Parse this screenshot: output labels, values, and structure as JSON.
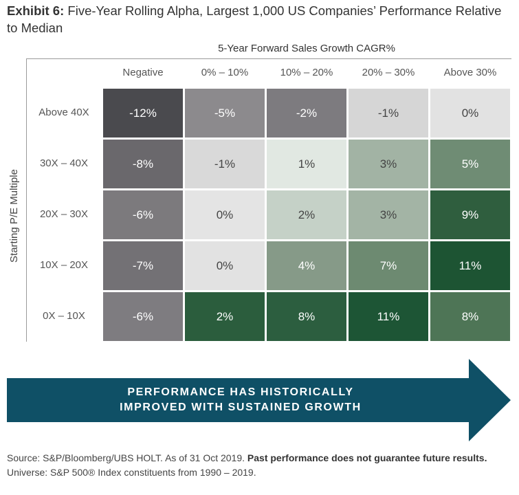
{
  "header": {
    "exhibit": "Exhibit 6:",
    "title": "Five-Year Rolling Alpha, Largest 1,000 US Companies’ Performance Relative to Median"
  },
  "chart_data": {
    "type": "heatmap",
    "xlabel": "5-Year Forward Sales Growth CAGR%",
    "ylabel": "Starting P/E Multiple",
    "columns": [
      "Negative",
      "0% – 10%",
      "10% – 20%",
      "20% – 30%",
      "Above 30%"
    ],
    "rows": [
      "Above 40X",
      "30X – 40X",
      "20X – 30X",
      "10X – 20X",
      "0X – 10X"
    ],
    "values": [
      [
        -12,
        -5,
        -2,
        -1,
        0
      ],
      [
        -8,
        -1,
        1,
        3,
        5
      ],
      [
        -6,
        0,
        2,
        3,
        9
      ],
      [
        -7,
        0,
        4,
        7,
        11
      ],
      [
        -6,
        2,
        8,
        11,
        8
      ]
    ],
    "labels": [
      [
        "-12%",
        "-5%",
        "-2%",
        "-1%",
        "0%"
      ],
      [
        "-8%",
        "-1%",
        "1%",
        "3%",
        "5%"
      ],
      [
        "-6%",
        "0%",
        "2%",
        "3%",
        "9%"
      ],
      [
        "-7%",
        "0%",
        "4%",
        "7%",
        "11%"
      ],
      [
        "-6%",
        "2%",
        "8%",
        "11%",
        "8%"
      ]
    ],
    "colors": [
      [
        "#4a4a4e",
        "#8c8a8d",
        "#7d7b7f",
        "#d6d6d6",
        "#e2e2e2"
      ],
      [
        "#6a686c",
        "#d9d9d9",
        "#e1e8e2",
        "#a2b3a4",
        "#6f8c74"
      ],
      [
        "#7c7a7d",
        "#e4e4e4",
        "#c5d1c7",
        "#a3b4a5",
        "#2f5e3e"
      ],
      [
        "#737175",
        "#e2e2e2",
        "#869a88",
        "#6d8a71",
        "#1d5433"
      ],
      [
        "#7e7c80",
        "#2b5d3d",
        "#2c5e3f",
        "#1d5535",
        "#4e7556"
      ]
    ]
  },
  "banner": {
    "line1": "PERFORMANCE HAS HISTORICALLY",
    "line2": "IMPROVED WITH SUSTAINED GROWTH",
    "color": "#0f5066"
  },
  "source": {
    "part1": "Source: S&P/Bloomberg/UBS HOLT. As of 31 Oct 2019.",
    "bold": "Past performance does not guarantee future results.",
    "part2": "Universe: S&P 500® Index constituents from 1990 – 2019."
  }
}
